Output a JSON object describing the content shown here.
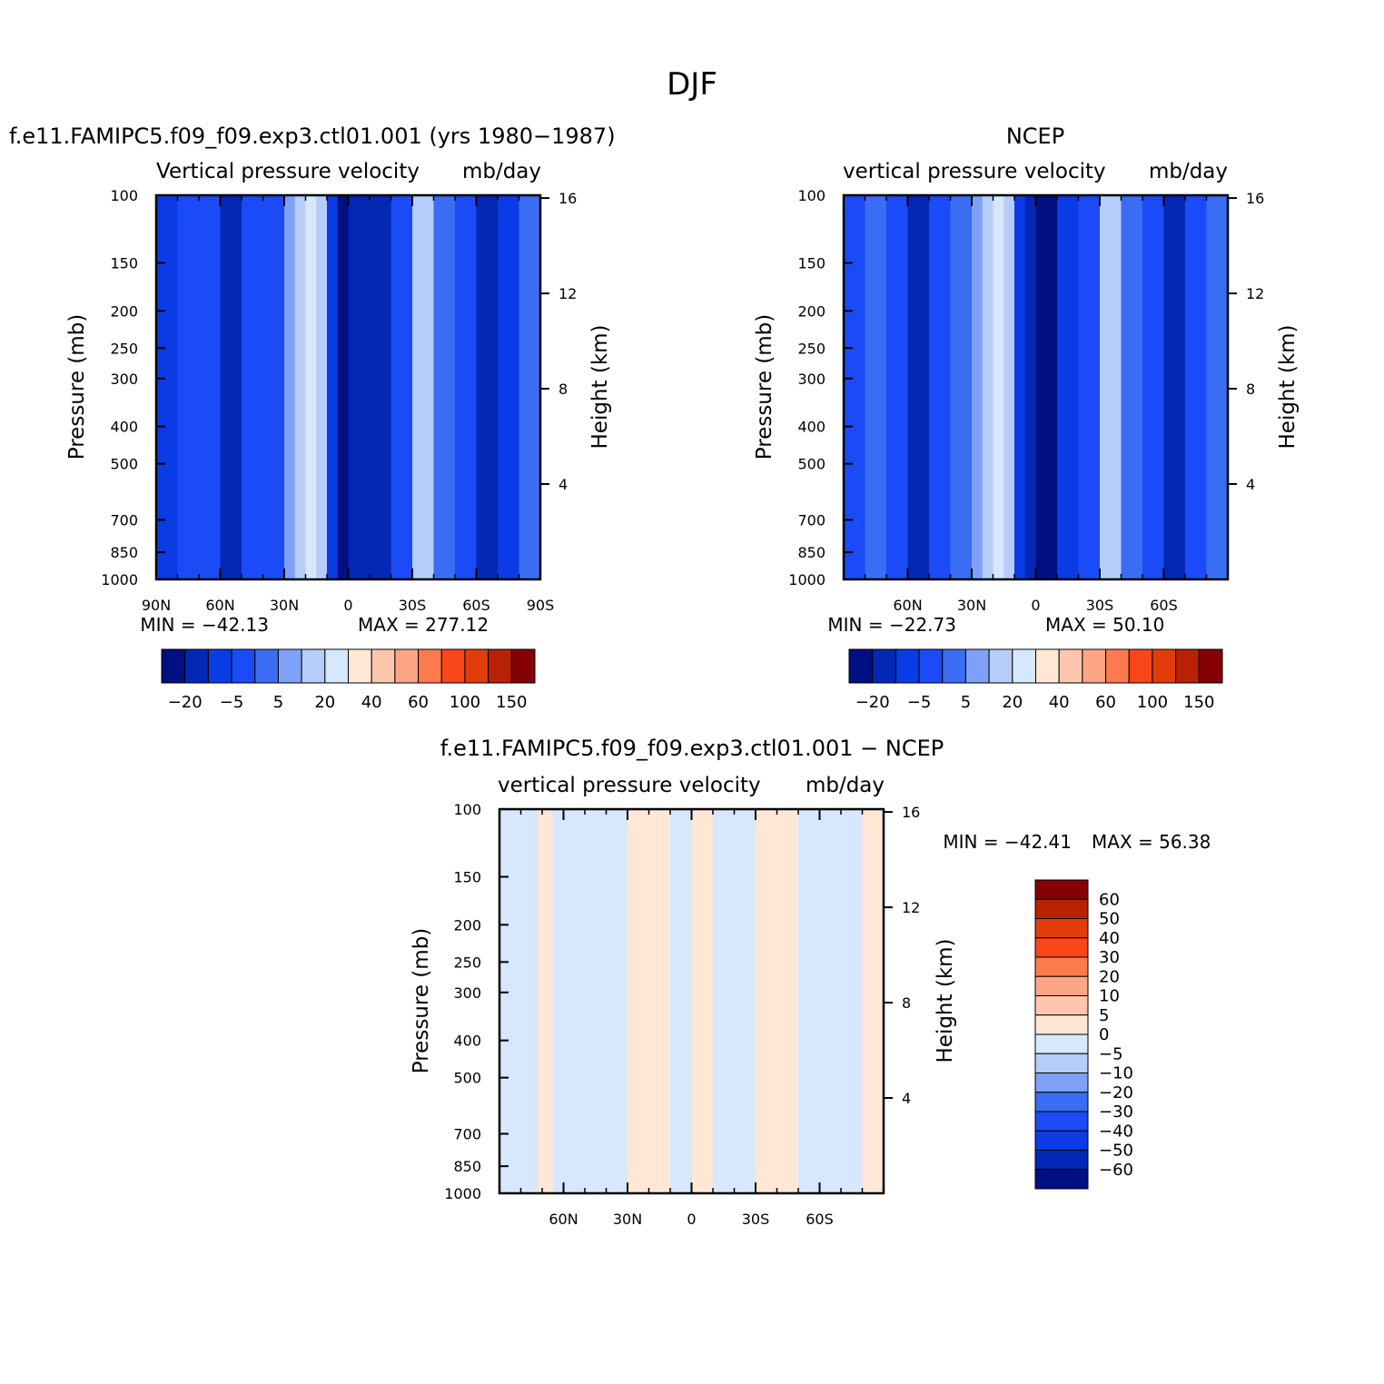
{
  "figure_title": "DJF",
  "colors": {
    "abs_palette": [
      "#000f81",
      "#0427b5",
      "#0a3be5",
      "#1a4bf6",
      "#3a6df3",
      "#7ea1f7",
      "#b6cdfa",
      "#d6e7fe",
      "#ffe7d6",
      "#fec6ad",
      "#fda585",
      "#fc7a4e",
      "#f84619",
      "#e13d0b",
      "#b82104",
      "#850005"
    ],
    "diff_palette": [
      "#000f81",
      "#0427b5",
      "#0a3be5",
      "#1a4bf6",
      "#3a6df3",
      "#7ea1f7",
      "#b6cdfa",
      "#d6e7fe",
      "#ffe7d6",
      "#fec6ad",
      "#fda585",
      "#fc7a4e",
      "#f84619",
      "#e13d0b",
      "#b82104",
      "#850005"
    ]
  },
  "chart_data": [
    {
      "type": "heatmap",
      "panel": "model",
      "title": "f.e11.FAMIPC5.f09_f09.exp3.ctl01.001 (yrs 1980−1987)",
      "variable": "Vertical pressure velocity",
      "units": "mb/day",
      "ylabel": "Pressure (mb)",
      "ylabel_right": "Height (km)",
      "x_ticks": [
        "90N",
        "60N",
        "30N",
        "0",
        "30S",
        "60S",
        "90S"
      ],
      "y_ticks": [
        100,
        150,
        200,
        250,
        300,
        400,
        500,
        700,
        850,
        1000
      ],
      "height_ticks": [
        4,
        8,
        12,
        16
      ],
      "min_label": "MIN = −42.13",
      "max_label": "MAX = 277.12",
      "colorbar_labels": [
        "−20",
        "−5",
        "5",
        "20",
        "40",
        "60",
        "100",
        "150"
      ],
      "bands": [
        {
          "lat": 90,
          "level": 2
        },
        {
          "lat": 80,
          "level": 3
        },
        {
          "lat": 70,
          "level": 3
        },
        {
          "lat": 60,
          "level": 1
        },
        {
          "lat": 50,
          "level": 3
        },
        {
          "lat": 40,
          "level": 3
        },
        {
          "lat": 30,
          "level": 5
        },
        {
          "lat": 25,
          "level": 6
        },
        {
          "lat": 20,
          "level": 7
        },
        {
          "lat": 15,
          "level": 6
        },
        {
          "lat": 10,
          "level": 2
        },
        {
          "lat": 5,
          "level": 0
        },
        {
          "lat": 0,
          "level": 1
        },
        {
          "lat": -10,
          "level": 1
        },
        {
          "lat": -20,
          "level": 3
        },
        {
          "lat": -30,
          "level": 6
        },
        {
          "lat": -40,
          "level": 4
        },
        {
          "lat": -50,
          "level": 3
        },
        {
          "lat": -60,
          "level": 1
        },
        {
          "lat": -70,
          "level": 2
        },
        {
          "lat": -80,
          "level": 4
        },
        {
          "lat": -90,
          "level": 4
        }
      ]
    },
    {
      "type": "heatmap",
      "panel": "obs",
      "title": "NCEP",
      "variable": "vertical pressure velocity",
      "units": "mb/day",
      "ylabel": "Pressure (mb)",
      "ylabel_right": "Height (km)",
      "x_ticks": [
        "60N",
        "30N",
        "0",
        "30S",
        "60S"
      ],
      "y_ticks": [
        100,
        150,
        200,
        250,
        300,
        400,
        500,
        700,
        850,
        1000
      ],
      "height_ticks": [
        4,
        8,
        12,
        16
      ],
      "min_label": "MIN = −22.73",
      "max_label": "MAX = 50.10",
      "colorbar_labels": [
        "−20",
        "−5",
        "5",
        "20",
        "40",
        "60",
        "100",
        "150"
      ],
      "bands": [
        {
          "lat": 90,
          "level": 3
        },
        {
          "lat": 80,
          "level": 4
        },
        {
          "lat": 70,
          "level": 3
        },
        {
          "lat": 60,
          "level": 1
        },
        {
          "lat": 50,
          "level": 3
        },
        {
          "lat": 40,
          "level": 4
        },
        {
          "lat": 30,
          "level": 5
        },
        {
          "lat": 25,
          "level": 6
        },
        {
          "lat": 20,
          "level": 7
        },
        {
          "lat": 15,
          "level": 6
        },
        {
          "lat": 10,
          "level": 2
        },
        {
          "lat": 5,
          "level": 1
        },
        {
          "lat": 0,
          "level": 0
        },
        {
          "lat": -10,
          "level": 2
        },
        {
          "lat": -20,
          "level": 3
        },
        {
          "lat": -30,
          "level": 6
        },
        {
          "lat": -40,
          "level": 4
        },
        {
          "lat": -50,
          "level": 3
        },
        {
          "lat": -60,
          "level": 1
        },
        {
          "lat": -70,
          "level": 3
        },
        {
          "lat": -80,
          "level": 4
        },
        {
          "lat": -90,
          "level": 3
        }
      ]
    },
    {
      "type": "heatmap",
      "panel": "difference",
      "title": "f.e11.FAMIPC5.f09_f09.exp3.ctl01.001 − NCEP",
      "variable": "vertical pressure velocity",
      "units": "mb/day",
      "ylabel": "Pressure (mb)",
      "ylabel_right": "Height (km)",
      "x_ticks": [
        "60N",
        "30N",
        "0",
        "30S",
        "60S"
      ],
      "y_ticks": [
        100,
        150,
        200,
        250,
        300,
        400,
        500,
        700,
        850,
        1000
      ],
      "height_ticks": [
        4,
        8,
        12,
        16
      ],
      "min_label": "MIN = −42.41",
      "max_label": "MAX = 56.38",
      "colorbar_labels": [
        "60",
        "50",
        "40",
        "30",
        "20",
        "10",
        "5",
        "0",
        "−5",
        "−10",
        "−20",
        "−30",
        "−40",
        "−50",
        "−60"
      ],
      "bands": [
        {
          "lat": 90,
          "level": 7
        },
        {
          "lat": 80,
          "level": 7
        },
        {
          "lat": 72,
          "level": 8
        },
        {
          "lat": 65,
          "level": 7
        },
        {
          "lat": 50,
          "level": 7
        },
        {
          "lat": 40,
          "level": 7
        },
        {
          "lat": 30,
          "level": 8
        },
        {
          "lat": 20,
          "level": 8
        },
        {
          "lat": 10,
          "level": 7
        },
        {
          "lat": 0,
          "level": 8
        },
        {
          "lat": -5,
          "level": 8
        },
        {
          "lat": -10,
          "level": 7
        },
        {
          "lat": -20,
          "level": 7
        },
        {
          "lat": -30,
          "level": 8
        },
        {
          "lat": -40,
          "level": 8
        },
        {
          "lat": -50,
          "level": 7
        },
        {
          "lat": -60,
          "level": 7
        },
        {
          "lat": -70,
          "level": 7
        },
        {
          "lat": -80,
          "level": 8
        },
        {
          "lat": -90,
          "level": 8
        }
      ]
    }
  ]
}
